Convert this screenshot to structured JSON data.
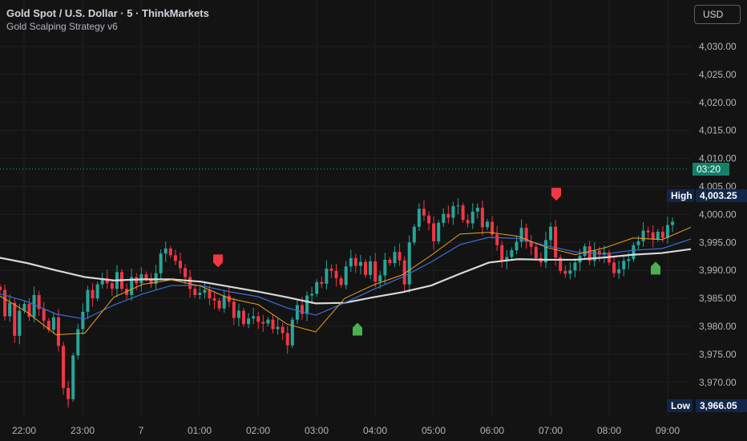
{
  "header": {
    "title": "Gold Spot / U.S. Dollar · 5 · ThinkMarkets",
    "subtitle": "Gold Scalping Strategy v6",
    "currency": "USD"
  },
  "labels": {
    "high_label": "High",
    "high_value": "4,003.25",
    "low_label": "Low",
    "low_value": "3,966.05",
    "countdown": "03:20"
  },
  "colors": {
    "background": "#131313",
    "up": "#26a69a",
    "down": "#f23645",
    "ema_fast": "#f0a020",
    "ema_mid": "#3a6fd8",
    "ema_slow": "#d8d8d8",
    "buy_signal": "#4caf50",
    "sell_signal": "#f23645",
    "current_price_line": "#26a69a"
  },
  "chart_data": {
    "type": "candlestick",
    "symbol": "Gold Spot / U.S. Dollar",
    "timeframe": "5",
    "ylim": [
      3962.5,
      4034.5
    ],
    "yticks": [
      3970,
      3975,
      3980,
      3985,
      3990,
      3995,
      4000,
      4005,
      4010,
      4015,
      4020,
      4025,
      4030
    ],
    "ytick_labels": [
      "3,970.00",
      "3,975.00",
      "3,980.00",
      "3,985.00",
      "3,990.00",
      "3,995.00",
      "4,000.00",
      "4,005.00",
      "4,010.00",
      "4,015.00",
      "4,020.00",
      "4,025.00",
      "4,030.00"
    ],
    "xtick_labels": [
      "22:00",
      "23:00",
      "7",
      "01:00",
      "02:00",
      "03:00",
      "04:00",
      "05:00",
      "06:00",
      "07:00",
      "08:00",
      "09:00"
    ],
    "grid": true,
    "current_price": 4008.1,
    "high": 4003.25,
    "low": 3966.05,
    "candles_by_hour": [
      [
        3986.5,
        3981.8,
        3984.2,
        3978.3,
        3982.8,
        3984.0,
        3981.7,
        3985.6,
        3983.1,
        3981.0,
        3979.4,
        3981.6
      ],
      [
        3976.5,
        3969.0,
        3967.0,
        3974.8,
        3979.5,
        3982.6,
        3986.5,
        3985.0,
        3987.5,
        3988.6,
        3987.7,
        3986.7
      ],
      [
        3989.7,
        3986.7,
        3985.6,
        3988.8,
        3987.7,
        3989.3,
        3988.5,
        3987.6,
        3989.5,
        3993.0,
        3993.9,
        3992.7
      ],
      [
        3991.7,
        3990.4,
        3988.8,
        3986.7,
        3985.6,
        3986.0,
        3986.5,
        3985.0,
        3984.6,
        3983.2,
        3985.5,
        3984.4
      ],
      [
        3981.5,
        3982.8,
        3980.4,
        3981.4,
        3981.8,
        3980.8,
        3980.5,
        3981.2,
        3979.5,
        3979.9,
        3978.8,
        3976.6
      ],
      [
        3981.2,
        3983.8,
        3982.2,
        3985.5,
        3985.8,
        3987.9,
        3987.6,
        3990.3,
        3989.9,
        3988.6,
        3987.4,
        3990.7
      ],
      [
        3992.2,
        3990.8,
        3991.5,
        3989.2,
        3991.6,
        3988.0,
        3989.1,
        3991.9,
        3991.3,
        3993.3,
        3991.8,
        3987.5
      ],
      [
        3995.0,
        3997.8,
        4001.0,
        3999.8,
        3998.4,
        3995.2,
        3998.5,
        4000.1,
        3999.4,
        4001.5,
        4001.6,
        3999.0
      ],
      [
        3998.4,
        4000.5,
        4001.2,
        3997.7,
        3998.7,
        3996.4,
        3994.5,
        3991.7,
        3992.4,
        3993.6,
        3995.1,
        3997.6
      ],
      [
        3995.1,
        3994.2,
        3992.2,
        3991.4,
        3995.4,
        3997.8,
        3992.3,
        3989.9,
        3989.4,
        3990.0,
        3991.4,
        3992.6
      ],
      [
        3994.3,
        3991.7,
        3993.5,
        3992.8,
        3993.2,
        3991.4,
        3989.5,
        3990.2,
        3991.7,
        3992.0,
        3994.5,
        3995.2
      ],
      [
        3997.1,
        3996.8,
        3995.6,
        3996.9,
        3995.8,
        3998.1,
        3998.7
      ]
    ],
    "series": [
      {
        "name": "EMA fast",
        "values": [
          3985.6,
          3982.5,
          3978.5,
          3978.8,
          3985.2,
          3987.5,
          3988.3,
          3987.2,
          3985.0,
          3983.9,
          3980.4,
          3979.0,
          3985.0,
          3987.4,
          3989.2,
          3992.7,
          3996.5,
          3996.8,
          3996.1,
          3994.1,
          3992.8,
          3994.0,
          3995.8,
          3995.5,
          3997.7
        ]
      },
      {
        "name": "EMA mid",
        "values": [
          3985.9,
          3984.4,
          3982.2,
          3981.3,
          3983.8,
          3985.8,
          3987.3,
          3987.3,
          3986.2,
          3985.3,
          3983.3,
          3982.0,
          3984.2,
          3986.6,
          3988.8,
          3991.5,
          3994.6,
          3995.9,
          3995.7,
          3994.4,
          3993.3,
          3992.9,
          3993.6,
          3993.9,
          3995.6
        ]
      },
      {
        "name": "EMA slow",
        "values": [
          3992.3,
          3991.3,
          3990.0,
          3988.8,
          3988.2,
          3988.4,
          3988.4,
          3988.0,
          3987.1,
          3986.2,
          3985.2,
          3984.1,
          3984.2,
          3985.2,
          3986.1,
          3987.3,
          3989.4,
          3991.4,
          3992.0,
          3991.9,
          3991.9,
          3992.3,
          3992.8,
          3993.1,
          3993.8
        ]
      }
    ],
    "signals": [
      {
        "type": "sell",
        "price": 3991.7
      },
      {
        "type": "buy",
        "price": 3979.5
      },
      {
        "type": "sell",
        "price": 4003.6
      },
      {
        "type": "buy",
        "price": 3990.4
      }
    ]
  }
}
